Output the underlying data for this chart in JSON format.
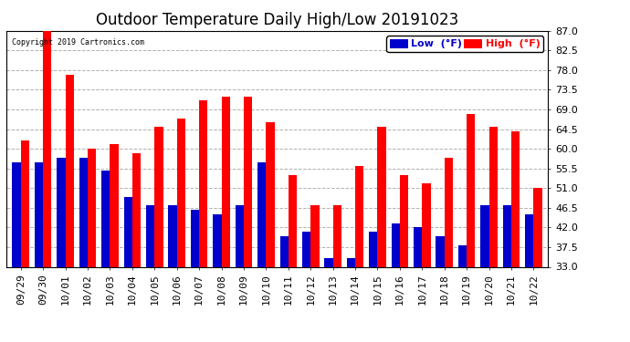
{
  "title": "Outdoor Temperature Daily High/Low 20191023",
  "copyright": "Copyright 2019 Cartronics.com",
  "categories": [
    "09/29",
    "09/30",
    "10/01",
    "10/02",
    "10/03",
    "10/04",
    "10/05",
    "10/06",
    "10/07",
    "10/08",
    "10/09",
    "10/10",
    "10/11",
    "10/12",
    "10/13",
    "10/14",
    "10/15",
    "10/16",
    "10/17",
    "10/18",
    "10/19",
    "10/20",
    "10/21",
    "10/22"
  ],
  "high": [
    62,
    88,
    77,
    60,
    61,
    59,
    65,
    67,
    71,
    72,
    72,
    66,
    54,
    47,
    47,
    56,
    65,
    54,
    52,
    58,
    68,
    65,
    64,
    51
  ],
  "low": [
    57,
    57,
    58,
    58,
    55,
    49,
    47,
    47,
    46,
    45,
    47,
    57,
    40,
    41,
    35,
    35,
    41,
    43,
    42,
    40,
    38,
    47,
    47,
    45
  ],
  "bar_color_high": "#ff0000",
  "bar_color_low": "#0000cc",
  "background_color": "#ffffff",
  "grid_color": "#b0b0b0",
  "ylim_min": 33.0,
  "ylim_max": 87.0,
  "yticks": [
    33.0,
    37.5,
    42.0,
    46.5,
    51.0,
    55.5,
    60.0,
    64.5,
    69.0,
    73.5,
    78.0,
    82.5,
    87.0
  ],
  "title_fontsize": 12,
  "tick_fontsize": 8,
  "legend_label_low": "Low  (°F)",
  "legend_label_high": "High  (°F)",
  "bar_width": 0.38
}
